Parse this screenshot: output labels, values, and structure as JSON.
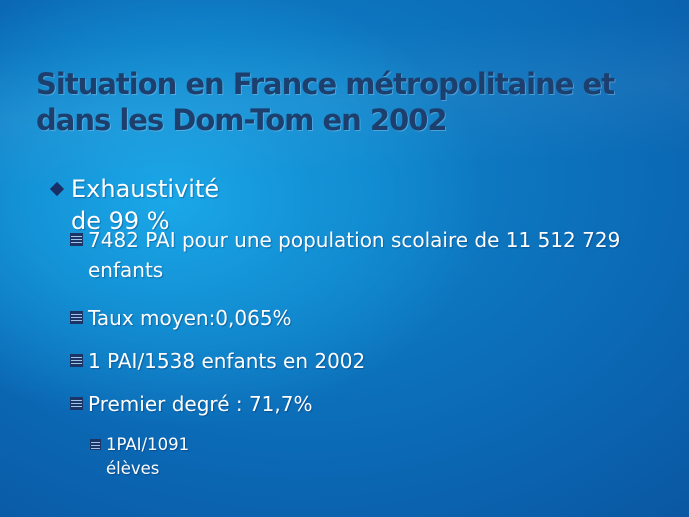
{
  "slide": {
    "title_line1": "Situation en France métropolitaine et",
    "title_line2": "dans les Dom-Tom en 2002",
    "bullets": [
      {
        "level": 1,
        "icon": "diamond-bullet-icon",
        "text": "Exhaustivité de 99 %"
      },
      {
        "level": 2,
        "icon": "square-bullet-icon",
        "text": "7482 PAI pour une population scolaire de 11 512 729 enfants"
      },
      {
        "level": 2,
        "icon": "square-bullet-icon",
        "text": "Taux moyen:0,065%"
      },
      {
        "level": 2,
        "icon": "square-bullet-icon",
        "text": "1 PAI/1538 enfants en 2002"
      },
      {
        "level": 2,
        "icon": "square-bullet-icon",
        "text": "Premier degré : 71,7%"
      },
      {
        "level": 3,
        "icon": "square-bullet-icon",
        "text": "1PAI/1091 élèves"
      }
    ],
    "colors": {
      "background": "#0f86cc",
      "title": "#1c3f6e",
      "text": "#ffffff",
      "bullet": "#1a2f66"
    }
  }
}
